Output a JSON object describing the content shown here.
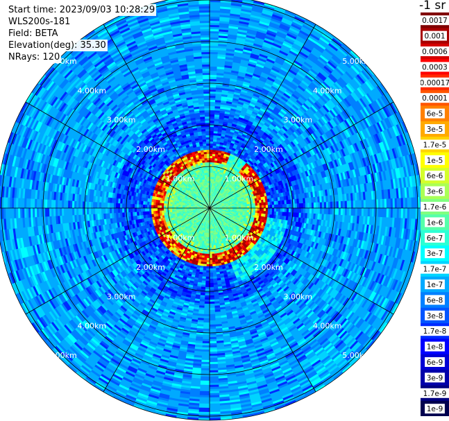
{
  "header": {
    "start_time": "Start time: 2023/09/03 10:28:29",
    "instrument": "WLS200s-181",
    "field": "Field: BETA",
    "elevation": "Elevation(deg): 35.30",
    "nrays": "NRays: 120"
  },
  "colorbar": {
    "title": "-1 sr",
    "labels": [
      "0.0017",
      "0.001",
      "0.0006",
      "0.0003",
      "0.00017",
      "0.0001",
      "6e-5",
      "3e-5",
      "1.7e-5",
      "1e-5",
      "6e-6",
      "3e-6",
      "1.7e-6",
      "1e-6",
      "6e-7",
      "3e-7",
      "1.7e-7",
      "1e-7",
      "6e-8",
      "3e-8",
      "1.7e-8",
      "1e-8",
      "6e-9",
      "3e-9",
      "1.7e-9",
      "1e-9"
    ],
    "colors": [
      "#800000",
      "#a80000",
      "#d40000",
      "#ff0000",
      "#ff2b00",
      "#ff5500",
      "#ff8000",
      "#ffaa00",
      "#ffd400",
      "#ffff00",
      "#d4ff2b",
      "#aaff55",
      "#80ff80",
      "#55ffaa",
      "#2bffd4",
      "#00ffff",
      "#00d4ff",
      "#00aaff",
      "#0080ff",
      "#0055ff",
      "#002bff",
      "#0000ff",
      "#0000d4",
      "#0000aa",
      "#000080",
      "#00004f"
    ]
  },
  "chart_data": {
    "type": "heatmap",
    "projection": "polar (PPI)",
    "range_rings_labels": [
      "1.00km",
      "2.00km",
      "3.00km",
      "4.00km",
      "5.00km"
    ],
    "range_rings_km": [
      1,
      2,
      3,
      4,
      5
    ],
    "max_range_km": 5.1,
    "radial_lines_every_deg": 30,
    "grid": true,
    "nrays": 120,
    "structure": {
      "inner_region_km": [
        0,
        1.1
      ],
      "inner_level": "1e-6 to 1.7e-6",
      "bright_ring_km": [
        1.1,
        1.35
      ],
      "ring_level": "0.0003 to 0.001",
      "ring_gap_azimuths_deg": [
        20,
        40
      ],
      "ring_southeast_sector_deg": [
        100,
        160
      ],
      "dark_halo_km": [
        1.35,
        2.3
      ],
      "halo_level": "1e-8 to 3e-8",
      "outer_region_km": [
        2.3,
        5.1
      ],
      "outer_level": "1.7e-8 to 1e-7"
    }
  }
}
